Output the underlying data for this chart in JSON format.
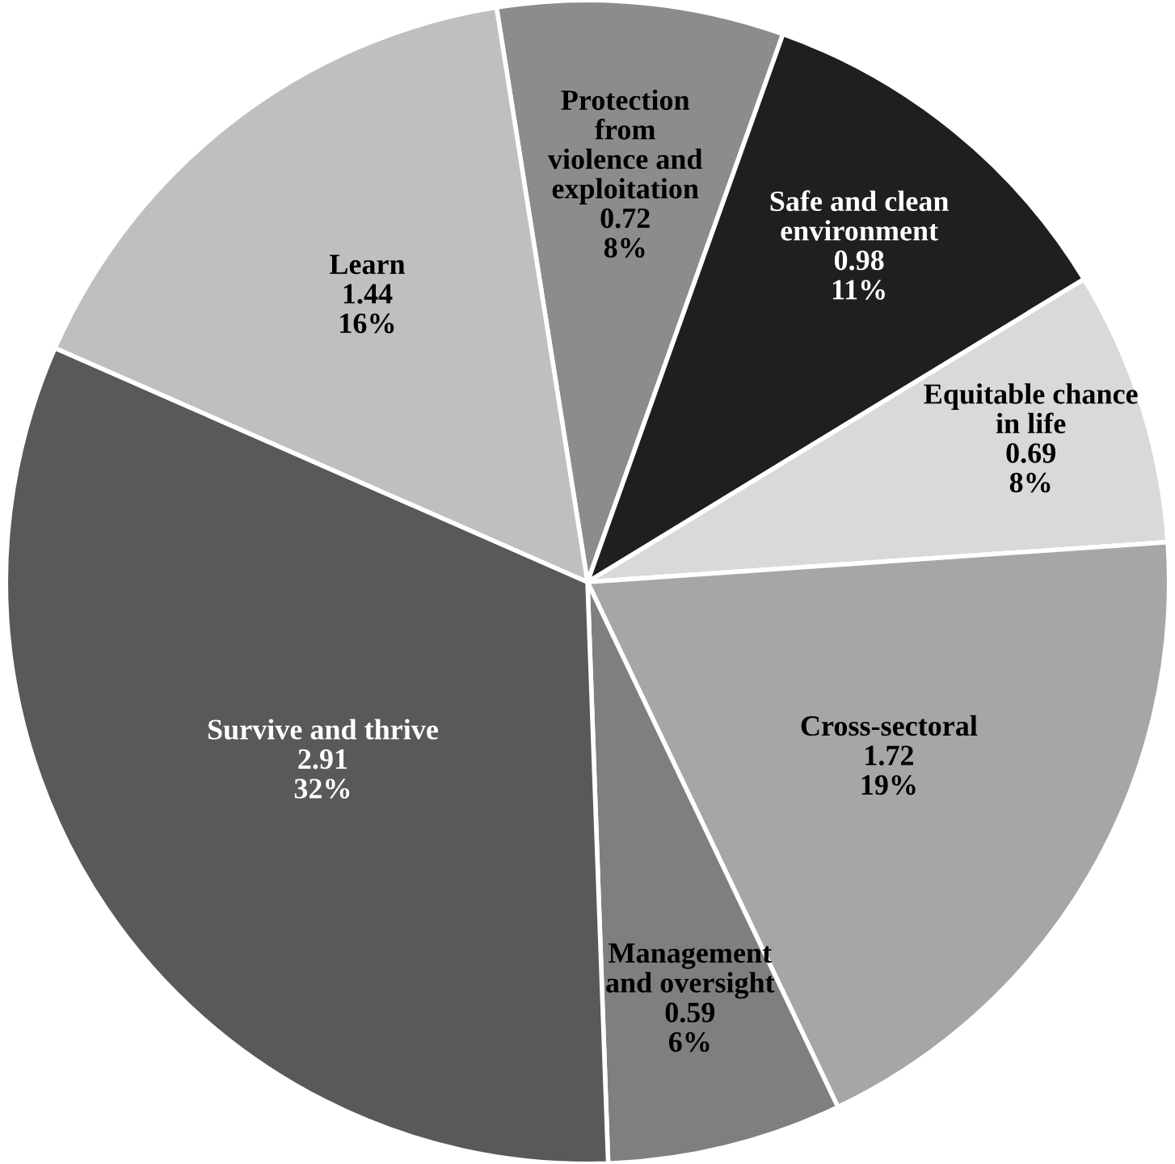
{
  "chart_data": {
    "type": "pie",
    "categories": [
      "Protection\nfrom\nviolence and\nexploitation",
      "Safe and clean\nenvironment",
      "Equitable chance\nin life",
      "Cross-sectoral",
      "Management\nand oversight",
      "Survive and thrive",
      "Learn"
    ],
    "values": [
      0.72,
      0.98,
      0.69,
      1.72,
      0.59,
      2.91,
      1.44
    ],
    "value_labels": [
      "0.72\n8%",
      "0.98\n11%",
      "0.69\n8%",
      "1.72\n19%",
      "0.59\n6%",
      "2.91\n32%",
      "1.44\n16%"
    ],
    "colors": [
      "#8c8c8c",
      "#1f1f1f",
      "#d9d9d9",
      "#a6a6a6",
      "#7f7f7f",
      "#595959",
      "#bfbfbf"
    ]
  }
}
